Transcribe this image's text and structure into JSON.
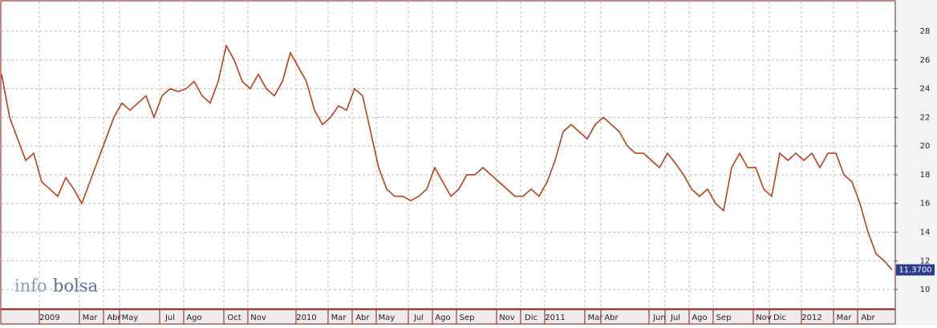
{
  "chart_data": {
    "type": "line",
    "categories": [
      null,
      null,
      null,
      null,
      null,
      null,
      "2009",
      null,
      null,
      null,
      null,
      "Mar",
      null,
      null,
      "Abr",
      null,
      "May",
      null,
      null,
      null,
      null,
      "Jul",
      null,
      null,
      "Ago",
      null,
      null,
      null,
      null,
      "Oct",
      null,
      null,
      "Nov",
      null,
      null,
      null,
      null,
      null,
      "2010",
      null,
      null,
      null,
      "Mar",
      null,
      null,
      "Abr",
      null,
      null,
      "May",
      null,
      null,
      null,
      "Jul",
      null,
      null,
      "Ago",
      null,
      null,
      "Sep",
      null,
      null,
      null,
      null,
      "Nov",
      null,
      null,
      "Dic",
      null,
      null,
      "2011",
      null,
      null,
      null,
      null,
      "Mar",
      null,
      "Abr",
      null,
      null,
      null,
      null,
      null,
      "Jun",
      null,
      "Jul",
      null,
      null,
      "Ago",
      null,
      null,
      "Sep",
      null,
      null,
      null,
      null,
      "Nov",
      null,
      "Dic",
      null,
      null,
      null,
      "2012",
      null,
      null,
      null,
      "Mar",
      null,
      null,
      "Abr",
      null,
      null,
      null
    ],
    "series": [
      {
        "color": "#b8401a",
        "values": [
          25,
          22,
          20.5,
          19,
          19.5,
          17.5,
          17,
          16.5,
          17.8,
          17,
          16,
          17.5,
          19,
          20.5,
          22,
          23,
          22.5,
          23,
          23.5,
          22,
          23.5,
          24,
          23.8,
          24,
          24.5,
          23.5,
          23,
          24.5,
          27,
          26,
          24.5,
          24,
          25,
          24,
          23.5,
          24.5,
          26.5,
          25.5,
          24.5,
          22.5,
          21.5,
          22,
          22.8,
          22.5,
          24,
          23.5,
          21,
          18.5,
          17,
          16.5,
          16.5,
          16.2,
          16.5,
          17,
          18.5,
          17.5,
          16.5,
          17,
          18,
          18,
          18.5,
          18,
          17.5,
          17,
          16.5,
          16.5,
          17,
          16.5,
          17.5,
          19,
          21,
          21.5,
          21,
          20.5,
          21.5,
          22,
          21.5,
          21,
          20,
          19.5,
          19.5,
          19,
          18.5,
          19.5,
          18.8,
          18,
          17,
          16.5,
          17,
          16,
          15.5,
          18.5,
          19.5,
          18.5,
          18.5,
          17,
          16.5,
          19.5,
          19,
          19.5,
          19,
          19.5,
          18.5,
          19.5,
          19.5,
          18,
          17.5,
          16,
          14,
          12.5,
          12,
          11.37
        ]
      }
    ],
    "current_price_label": "11.3700",
    "ylim": [
      8.66,
      30.07
    ],
    "yticks": [
      10,
      12,
      14,
      16,
      18,
      20,
      22,
      24,
      26,
      28
    ],
    "grid": true,
    "watermark": {
      "light": "info",
      "bold": "bolsa"
    }
  }
}
